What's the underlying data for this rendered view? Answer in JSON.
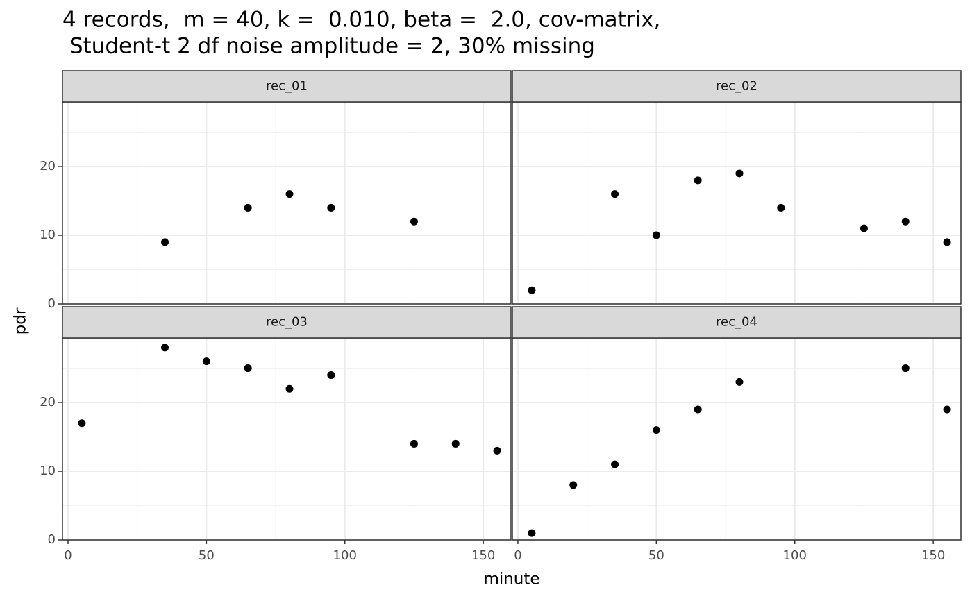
{
  "title": [
    "4 records,  m = 40, k =  0.010, beta =  2.0, cov-matrix,",
    " Student-t 2 df noise amplitude = 2, 30% missing"
  ],
  "xlabel": "minute",
  "ylabel": "pdr",
  "chart_data": [
    {
      "type": "scatter",
      "title": "rec_01",
      "color": "#000000",
      "grid": true,
      "x": [
        35,
        65,
        80,
        95,
        125
      ],
      "values": [
        9,
        14,
        16,
        14,
        12
      ],
      "xlim": [
        -2,
        160
      ],
      "ylim": [
        0,
        29.4
      ],
      "xticks": [
        0,
        50,
        100,
        150
      ],
      "yticks": [
        0,
        10,
        20
      ],
      "xminor": [
        25,
        75,
        125
      ],
      "yminor": [
        5,
        15,
        25
      ]
    },
    {
      "type": "scatter",
      "title": "rec_02",
      "color": "#000000",
      "grid": true,
      "x": [
        5,
        35,
        50,
        65,
        80,
        95,
        125,
        140,
        155
      ],
      "values": [
        2,
        16,
        10,
        18,
        19,
        14,
        11,
        12,
        9
      ],
      "xlim": [
        -2,
        160
      ],
      "ylim": [
        0,
        29.4
      ],
      "xticks": [
        0,
        50,
        100,
        150
      ],
      "yticks": [
        0,
        10,
        20
      ],
      "xminor": [
        25,
        75,
        125
      ],
      "yminor": [
        5,
        15,
        25
      ]
    },
    {
      "type": "scatter",
      "title": "rec_03",
      "color": "#000000",
      "grid": true,
      "x": [
        5,
        35,
        50,
        65,
        80,
        95,
        125,
        140,
        155
      ],
      "values": [
        17,
        28,
        26,
        25,
        22,
        24,
        14,
        14,
        13
      ],
      "xlim": [
        -2,
        160
      ],
      "ylim": [
        0,
        29.4
      ],
      "xticks": [
        0,
        50,
        100,
        150
      ],
      "yticks": [
        0,
        10,
        20
      ],
      "xminor": [
        25,
        75,
        125
      ],
      "yminor": [
        5,
        15,
        25
      ]
    },
    {
      "type": "scatter",
      "title": "rec_04",
      "color": "#000000",
      "grid": true,
      "x": [
        5,
        20,
        35,
        50,
        65,
        80,
        140,
        155
      ],
      "values": [
        1,
        8,
        11,
        16,
        19,
        23,
        25,
        19
      ],
      "xlim": [
        -2,
        160
      ],
      "ylim": [
        0,
        29.4
      ],
      "xticks": [
        0,
        50,
        100,
        150
      ],
      "yticks": [
        0,
        10,
        20
      ],
      "xminor": [
        25,
        75,
        125
      ],
      "yminor": [
        5,
        15,
        25
      ]
    }
  ]
}
